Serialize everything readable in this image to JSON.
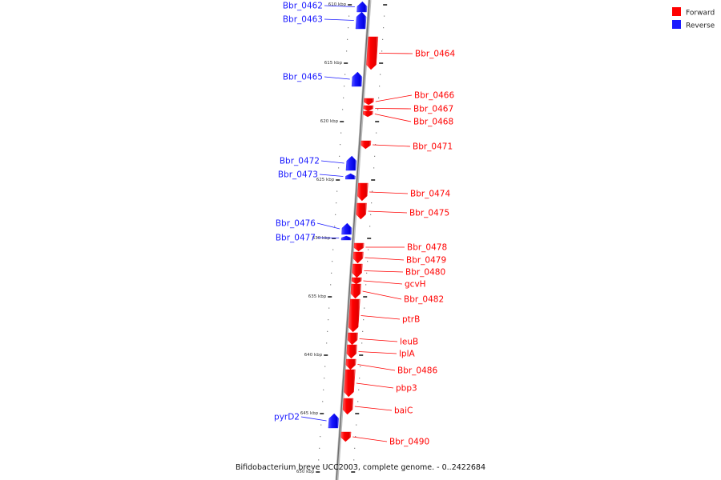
{
  "caption": "Bifidobacterium breve UCC2003, complete genome. - 0..2422684",
  "legend": [
    {
      "label": "Forward",
      "color": "#ff0000"
    },
    {
      "label": "Reverse",
      "color": "#1a1aff"
    }
  ],
  "colors": {
    "forward": "#ff0000",
    "reverse": "#1a1aff",
    "backbone": "#999999"
  },
  "tick_labels": [
    "610 kbp",
    "615 kbp",
    "620 kbp",
    "625 kbp",
    "630 kbp",
    "635 kbp",
    "640 kbp",
    "645 kbp",
    "650 kbp"
  ],
  "genes": [
    {
      "name": "Bbr_0462",
      "strand": "reverse"
    },
    {
      "name": "Bbr_0463",
      "strand": "reverse"
    },
    {
      "name": "Bbr_0464",
      "strand": "forward"
    },
    {
      "name": "Bbr_0465",
      "strand": "reverse"
    },
    {
      "name": "Bbr_0466",
      "strand": "forward"
    },
    {
      "name": "Bbr_0467",
      "strand": "forward"
    },
    {
      "name": "Bbr_0468",
      "strand": "forward"
    },
    {
      "name": "Bbr_0471",
      "strand": "forward"
    },
    {
      "name": "Bbr_0472",
      "strand": "reverse"
    },
    {
      "name": "Bbr_0473",
      "strand": "reverse"
    },
    {
      "name": "Bbr_0474",
      "strand": "forward"
    },
    {
      "name": "Bbr_0475",
      "strand": "forward"
    },
    {
      "name": "Bbr_0476",
      "strand": "reverse"
    },
    {
      "name": "Bbr_0477",
      "strand": "reverse"
    },
    {
      "name": "Bbr_0478",
      "strand": "forward"
    },
    {
      "name": "Bbr_0479",
      "strand": "forward"
    },
    {
      "name": "Bbr_0480",
      "strand": "forward"
    },
    {
      "name": "gcvH",
      "strand": "forward"
    },
    {
      "name": "Bbr_0482",
      "strand": "forward"
    },
    {
      "name": "ptrB",
      "strand": "forward"
    },
    {
      "name": "leuB",
      "strand": "forward"
    },
    {
      "name": "lplA",
      "strand": "forward"
    },
    {
      "name": "Bbr_0486",
      "strand": "forward"
    },
    {
      "name": "pbp3",
      "strand": "forward"
    },
    {
      "name": "baiC",
      "strand": "forward"
    },
    {
      "name": "pyrD2",
      "strand": "reverse"
    },
    {
      "name": "Bbr_0490",
      "strand": "forward"
    }
  ]
}
